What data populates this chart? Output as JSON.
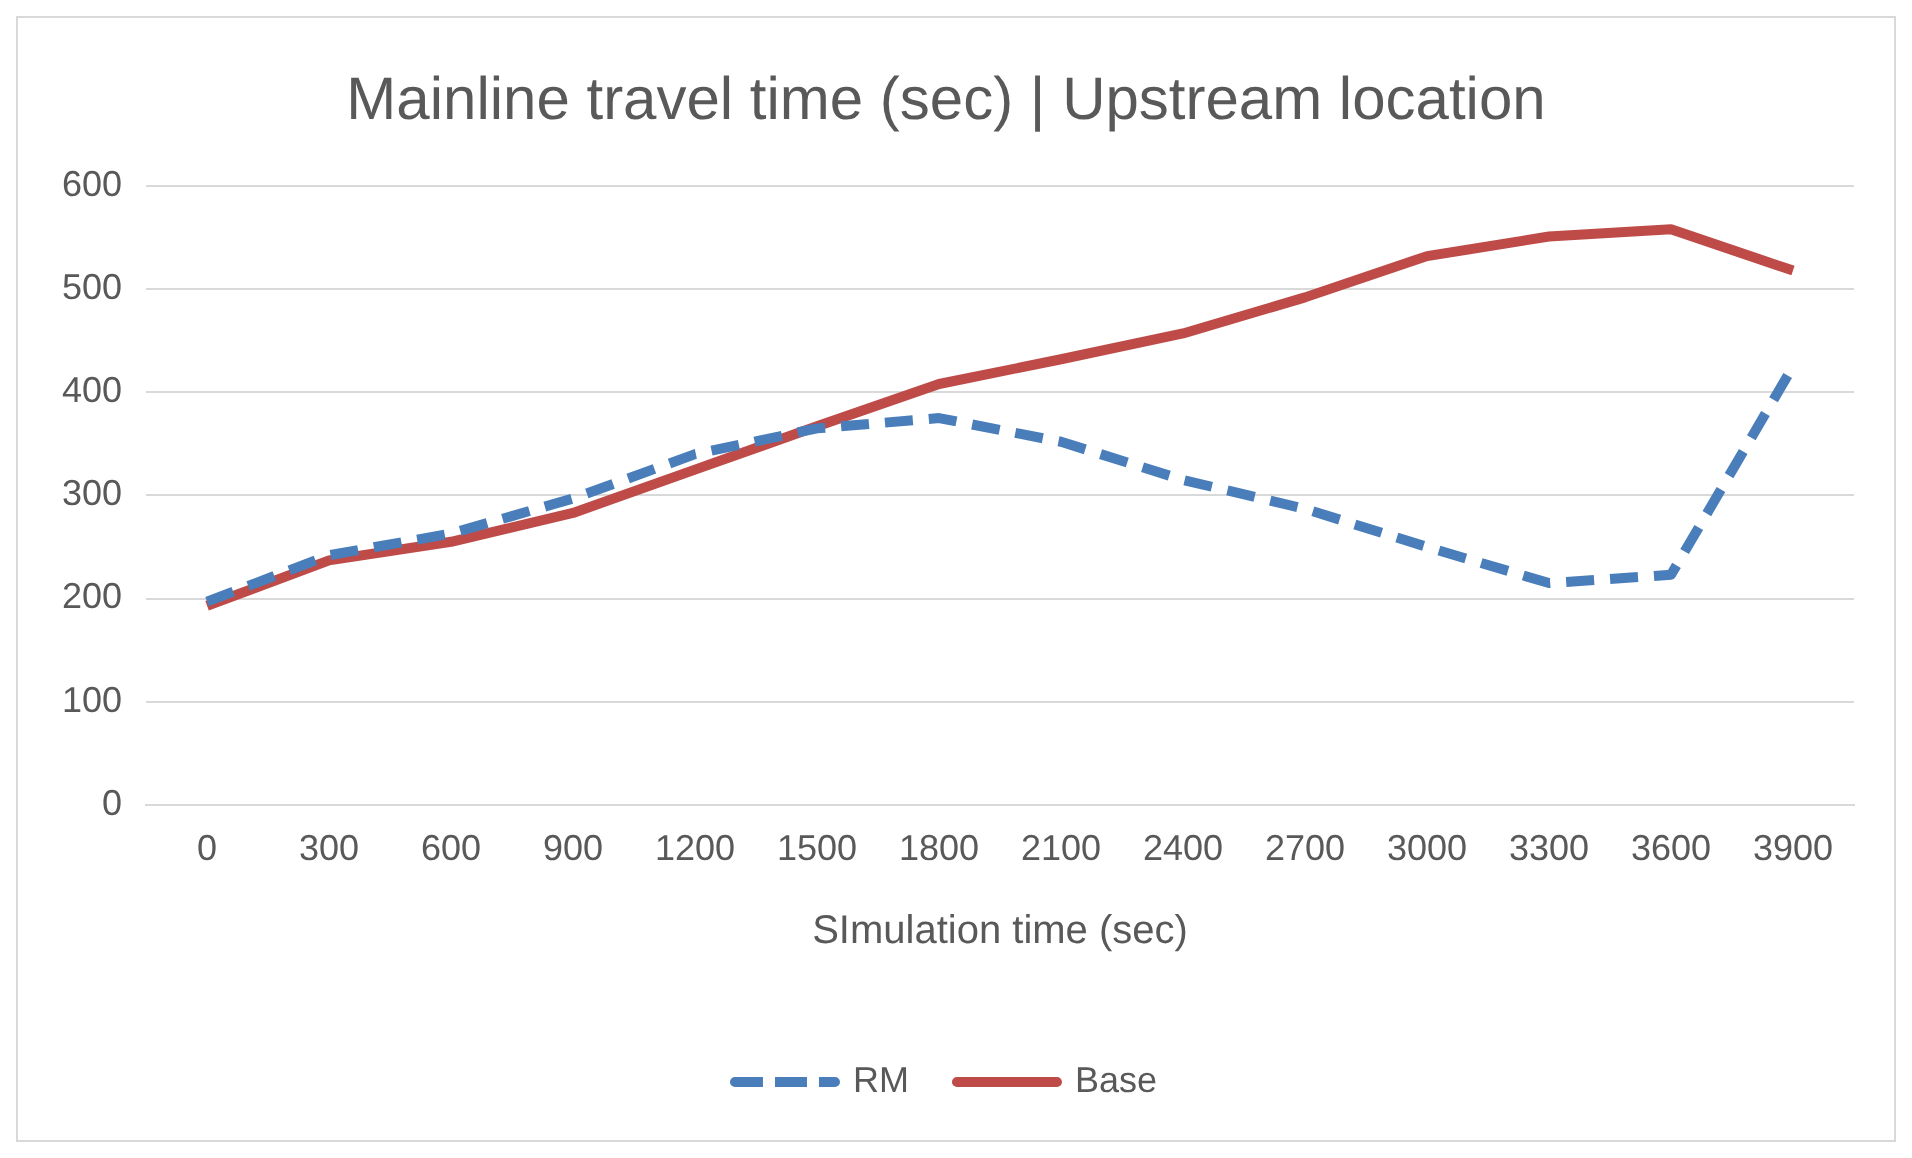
{
  "chart_data": {
    "type": "line",
    "title": "Mainline travel time (sec) | Upstream location",
    "xlabel": "SImulation time (sec)",
    "categories": [
      "0",
      "300",
      "600",
      "900",
      "1200",
      "1500",
      "1800",
      "2100",
      "2400",
      "2700",
      "3000",
      "3300",
      "3600",
      "3900"
    ],
    "series": [
      {
        "name": "RM",
        "color": "#4a7ebb",
        "line_style": "dashed",
        "values": [
          197,
          242,
          263,
          297,
          340,
          365,
          375,
          352,
          315,
          287,
          250,
          215,
          223,
          425
        ]
      },
      {
        "name": "Base",
        "color": "#be4b48",
        "line_style": "solid",
        "values": [
          193,
          237,
          255,
          283,
          325,
          367,
          408,
          432,
          457,
          492,
          532,
          551,
          558,
          518
        ]
      }
    ],
    "ylim": [
      0,
      600
    ],
    "yticks": [
      0,
      100,
      200,
      300,
      400,
      500,
      600
    ],
    "grid": "y",
    "legend": "bottom",
    "marker": "none"
  }
}
